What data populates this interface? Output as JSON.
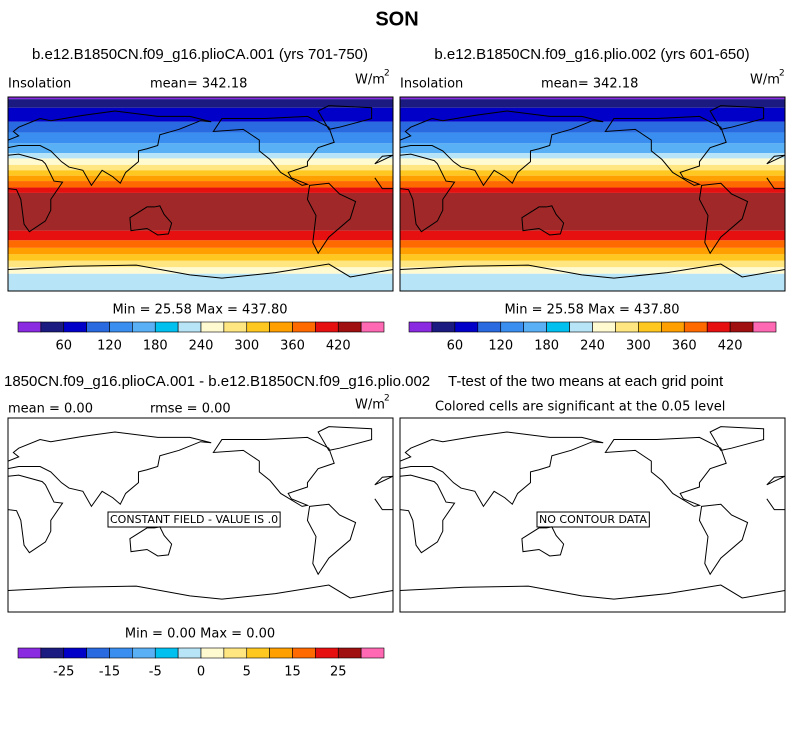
{
  "title": "SON",
  "panels": [
    {
      "subtitle": "b.e12.B1850CN.f09_g16.plioCA.001 (yrs 701-750)",
      "left_label": "Insolation",
      "center_label": "mean= 342.18",
      "units": "W/m",
      "units_exp": "2",
      "stats": "Min =  25.58 Max = 437.80"
    },
    {
      "subtitle": "b.e12.B1850CN.f09_g16.plio.002 (yrs 601-650)",
      "left_label": "Insolation",
      "center_label": "mean= 342.18",
      "units": "W/m",
      "units_exp": "2",
      "stats": "Min =  25.58 Max = 437.80"
    }
  ],
  "diff": {
    "subtitle": "1850CN.f09_g16.plioCA.001 - b.e12.B1850CN.f09_g16.plio.002",
    "left_label": "mean =   0.00",
    "center_label": "rmse =   0.00",
    "units": "W/m",
    "units_exp": "2",
    "stats": "Min =   0.00 Max =   0.00",
    "annotation": "CONSTANT FIELD - VALUE IS .0"
  },
  "ttest": {
    "subtitle": "T-test of the two means at each grid point",
    "note": "Colored cells are significant at the 0.05 level",
    "annotation": "NO CONTOUR DATA"
  },
  "colorbar_top": {
    "colors": [
      "#8a2be2",
      "#1a1a80",
      "#0000c8",
      "#2a6ae0",
      "#3a8ef0",
      "#5ab0f5",
      "#00c0f0",
      "#b8e4f8",
      "#fffad0",
      "#ffe680",
      "#ffc820",
      "#ffa000",
      "#ff6a00",
      "#e61010",
      "#a01010",
      "#ff69b4"
    ],
    "labels": [
      "60",
      "120",
      "180",
      "240",
      "300",
      "360",
      "420"
    ]
  },
  "colorbar_bottom": {
    "colors": [
      "#8a2be2",
      "#1a1a80",
      "#0000c8",
      "#2a6ae0",
      "#3a8ef0",
      "#5ab0f5",
      "#00c0f0",
      "#b8e4f8",
      "#fffad0",
      "#ffe680",
      "#ffc820",
      "#ffa000",
      "#ff6a00",
      "#e61010",
      "#a01010",
      "#ff69b4"
    ],
    "labels": [
      "-25",
      "-15",
      "-5",
      "0",
      "5",
      "15",
      "25"
    ]
  }
}
